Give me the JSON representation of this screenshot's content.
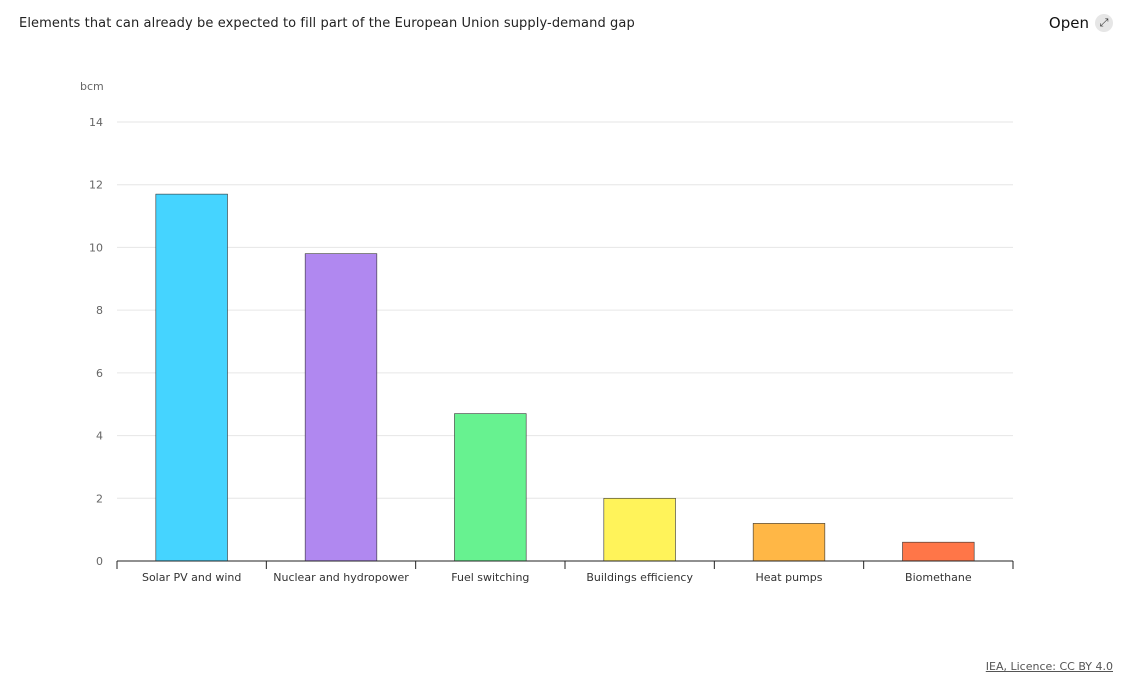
{
  "header": {
    "title": "Elements that can already be expected to fill part of the European Union supply-demand gap",
    "open_label": "Open",
    "open_icon": "expand-arrow-icon"
  },
  "footer": {
    "license": "IEA, Licence: CC BY 4.0"
  },
  "chart_data": {
    "type": "bar",
    "ylabel": "bcm",
    "xlabel": "",
    "ylim": [
      0,
      14
    ],
    "yticks": [
      0,
      2,
      4,
      6,
      8,
      10,
      12,
      14
    ],
    "grid": true,
    "categories": [
      "Solar PV and wind",
      "Nuclear and hydropower",
      "Fuel switching",
      "Buildings efficiency",
      "Heat pumps",
      "Biomethane"
    ],
    "values": [
      11.7,
      9.8,
      4.7,
      2.0,
      1.2,
      0.6
    ],
    "colors": [
      "#45d4ff",
      "#b088f0",
      "#67f290",
      "#fff35a",
      "#ffb746",
      "#ff7648"
    ]
  }
}
